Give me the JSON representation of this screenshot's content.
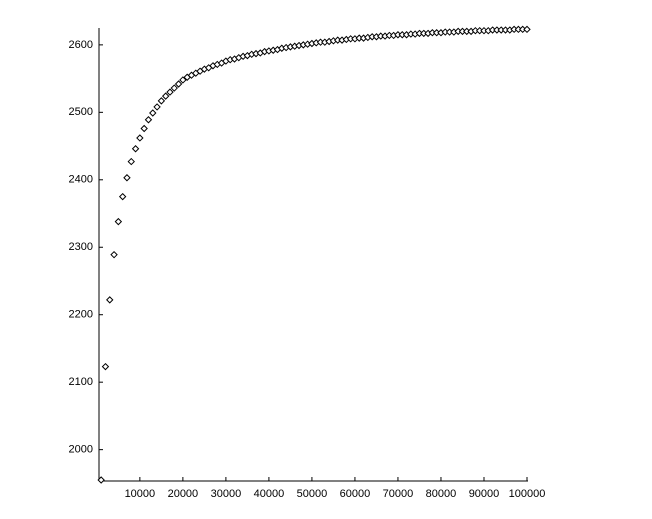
{
  "chart_data": {
    "type": "scatter",
    "color": "#000000",
    "x": [
      1000,
      2000,
      3000,
      4000,
      5000,
      6000,
      7000,
      8000,
      9000,
      10000,
      11000,
      12000,
      13000,
      14000,
      15000,
      16000,
      17000,
      18000,
      19000,
      20000,
      21000,
      22000,
      23000,
      24000,
      25000,
      26000,
      27000,
      28000,
      29000,
      30000,
      31000,
      32000,
      33000,
      34000,
      35000,
      36000,
      37000,
      38000,
      39000,
      40000,
      41000,
      42000,
      43000,
      44000,
      45000,
      46000,
      47000,
      48000,
      49000,
      50000,
      51000,
      52000,
      53000,
      54000,
      55000,
      56000,
      57000,
      58000,
      59000,
      60000,
      61000,
      62000,
      63000,
      64000,
      65000,
      66000,
      67000,
      68000,
      69000,
      70000,
      71000,
      72000,
      73000,
      74000,
      75000,
      76000,
      77000,
      78000,
      79000,
      80000,
      81000,
      82000,
      83000,
      84000,
      85000,
      86000,
      87000,
      88000,
      89000,
      90000,
      91000,
      92000,
      93000,
      94000,
      95000,
      96000,
      97000,
      98000,
      99000,
      100000
    ],
    "values": [
      1955,
      2123,
      2222,
      2289,
      2338,
      2375,
      2403,
      2427,
      2446,
      2462,
      2476,
      2489,
      2499,
      2508,
      2517,
      2524,
      2530,
      2536,
      2542,
      2548,
      2552,
      2555,
      2558,
      2561,
      2564,
      2566,
      2569,
      2571,
      2573,
      2576,
      2578,
      2579,
      2581,
      2583,
      2584,
      2586,
      2587,
      2588,
      2590,
      2591,
      2592,
      2593,
      2595,
      2596,
      2597,
      2598,
      2599,
      2600,
      2601,
      2602,
      2603,
      2604,
      2604,
      2605,
      2606,
      2607,
      2607,
      2608,
      2609,
      2609,
      2610,
      2610,
      2611,
      2612,
      2612,
      2613,
      2613,
      2614,
      2614,
      2615,
      2615,
      2615,
      2616,
      2616,
      2617,
      2617,
      2617,
      2618,
      2618,
      2618,
      2619,
      2619,
      2619,
      2620,
      2620,
      2620,
      2620,
      2621,
      2621,
      2621,
      2621,
      2622,
      2622,
      2622,
      2622,
      2622,
      2623,
      2623,
      2623,
      2623
    ],
    "xlim": [
      500,
      100000
    ],
    "ylim": [
      1955,
      2625
    ],
    "xticks": [
      10000,
      20000,
      30000,
      40000,
      50000,
      60000,
      70000,
      80000,
      90000,
      100000
    ],
    "yticks": [
      2000,
      2100,
      2200,
      2300,
      2400,
      2500,
      2600
    ]
  }
}
